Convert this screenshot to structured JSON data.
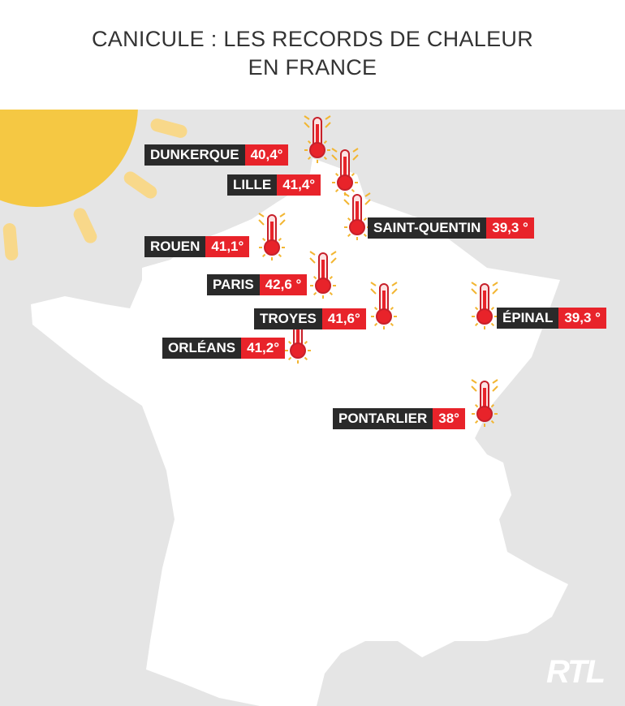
{
  "header": {
    "title_lines": [
      "CANICULE : LES RECORDS DE CHALEUR",
      "EN FRANCE"
    ]
  },
  "cities": [
    {
      "name": "DUNKERQUE",
      "temperature": "40,4°"
    },
    {
      "name": "LILLE",
      "temperature": "41,4°"
    },
    {
      "name": "SAINT-QUENTIN",
      "temperature": "39,3 °"
    },
    {
      "name": "ROUEN",
      "temperature": "41,1°"
    },
    {
      "name": "PARIS",
      "temperature": "42,6 °"
    },
    {
      "name": "TROYES",
      "temperature": "41,6°"
    },
    {
      "name": "ÉPINAL",
      "temperature": "39,3 °"
    },
    {
      "name": "ORLÉANS",
      "temperature": "41,2°"
    },
    {
      "name": "PONTARLIER",
      "temperature": "38°"
    }
  ],
  "logo": "RTL"
}
